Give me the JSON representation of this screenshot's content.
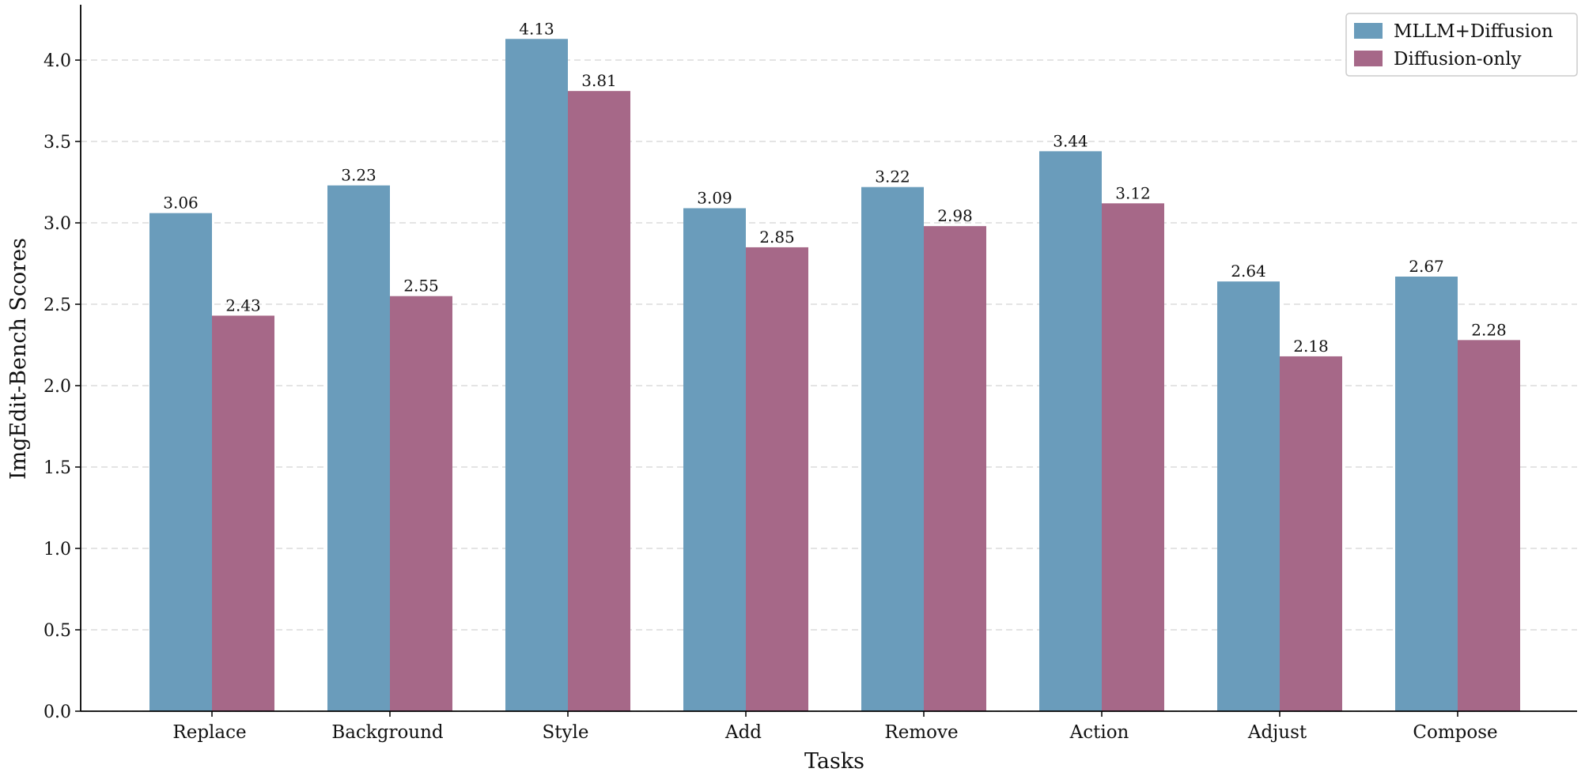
{
  "chart_data": {
    "type": "bar",
    "x_label": "Tasks",
    "y_label": "ImgEdit-Bench Scores",
    "categories": [
      "Replace",
      "Background",
      "Style",
      "Add",
      "Remove",
      "Action",
      "Adjust",
      "Compose"
    ],
    "series": [
      {
        "name": "MLLM+Diffusion",
        "color": "#6a9cbb",
        "values": [
          3.06,
          3.23,
          4.13,
          3.09,
          3.22,
          3.44,
          2.64,
          2.67
        ]
      },
      {
        "name": "Diffusion-only",
        "color": "#a66888",
        "values": [
          2.43,
          2.55,
          3.81,
          2.85,
          2.98,
          3.12,
          2.18,
          2.28
        ]
      }
    ],
    "ylim": [
      0,
      4.34
    ],
    "yticks": [
      {
        "value": 0,
        "label": "0.0"
      },
      {
        "value": 0.5,
        "label": "0.5"
      },
      {
        "value": 1,
        "label": "1.0"
      },
      {
        "value": 1.5,
        "label": "1.5"
      },
      {
        "value": 2,
        "label": "2.0"
      },
      {
        "value": 2.5,
        "label": "2.5"
      },
      {
        "value": 3,
        "label": "3.0"
      },
      {
        "value": 3.5,
        "label": "3.5"
      },
      {
        "value": 4,
        "label": "4.0"
      }
    ],
    "grid": true,
    "legend": "upper-right"
  }
}
